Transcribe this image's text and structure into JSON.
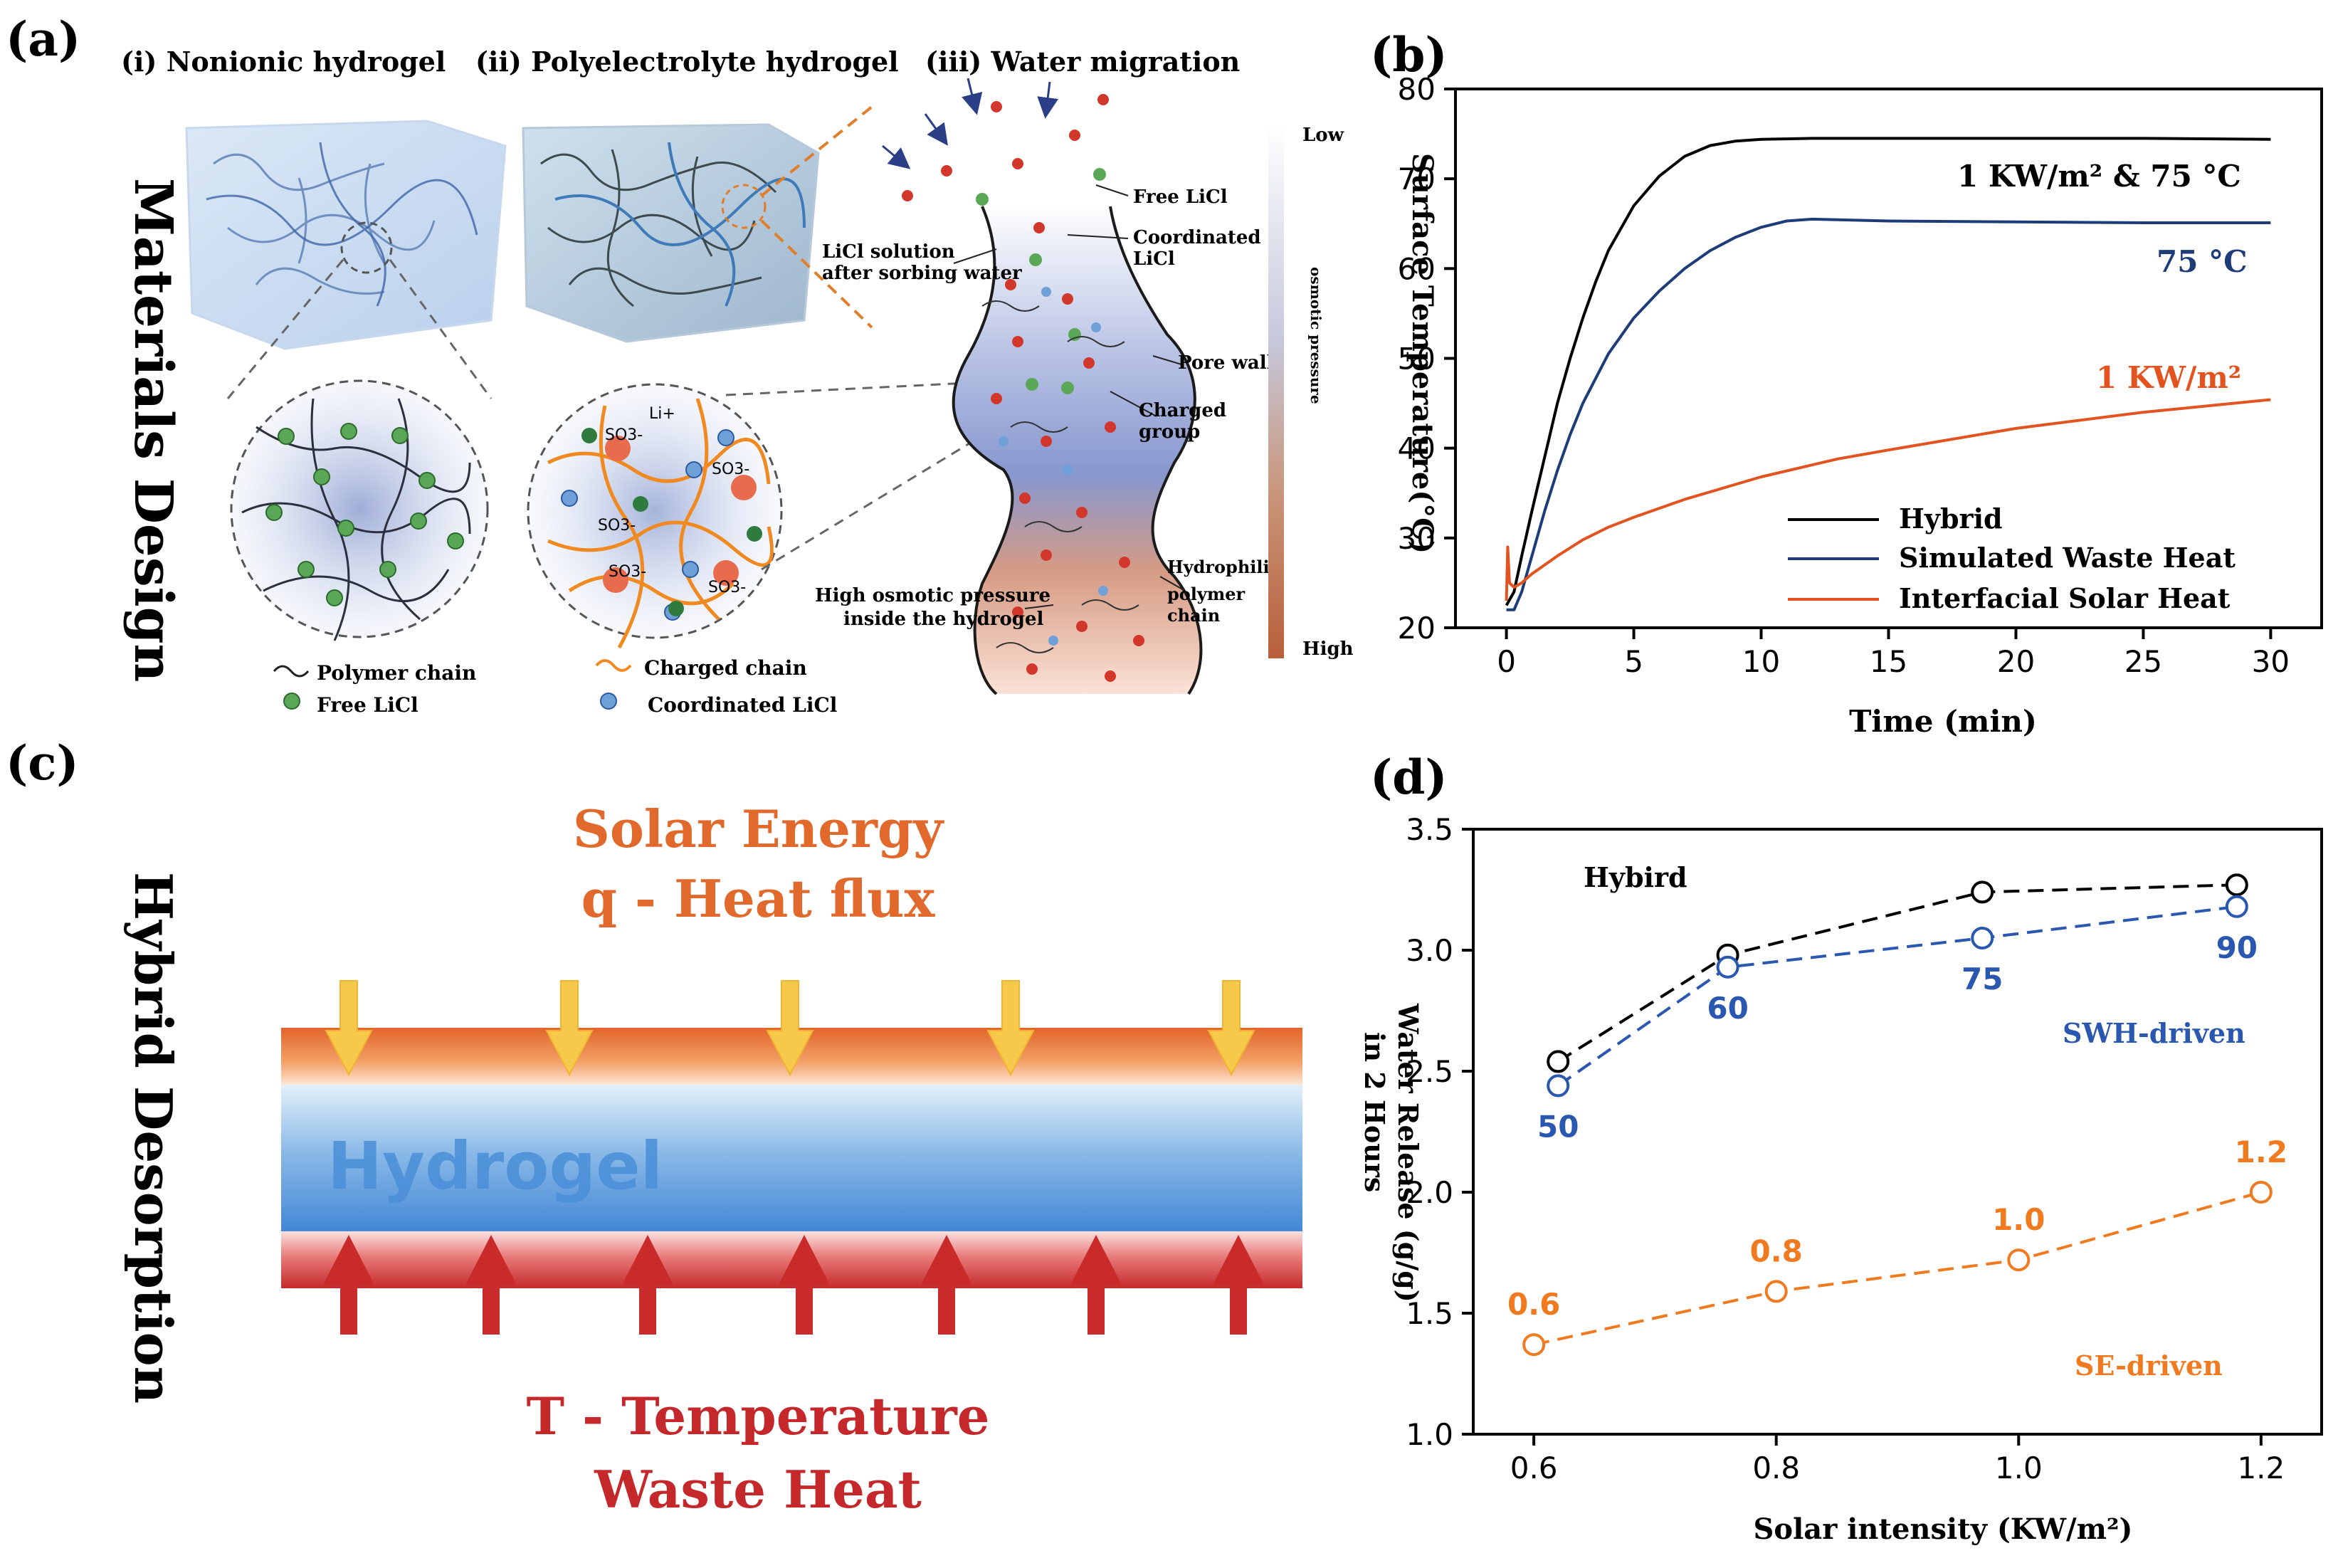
{
  "panel_a": {
    "label": "(a)",
    "side_title": "Materials Design",
    "sub_i": "(i)  Nonionic hydrogel",
    "sub_ii": "(ii)  Polyelectrolyte hydrogel",
    "sub_iii": "(iii)  Water migration",
    "legend_polymer": "Polymer chain",
    "legend_free": "Free LiCl",
    "legend_charged": "Charged chain",
    "legend_coord": "Coordinated LiCl",
    "ion_li": "Li+",
    "ion_so3": "SO3-",
    "label_free_licl": "Free LiCl",
    "label_coord_l1": "Coordinated",
    "label_coord_l2": "LiCl",
    "label_solution_l1": "LiCl solution",
    "label_solution_l2": "after sorbing water",
    "label_pore": "Pore wall",
    "label_charged_l1": "Charged",
    "label_charged_l2": "group",
    "label_hp_l1": "Hydrophilic",
    "label_hp_l2": "polymer",
    "label_hp_l3": "chain",
    "label_osm_l1": "High osmotic pressure",
    "label_osm_l2": "inside the hydrogel",
    "scale_low": "Low",
    "scale_high": "High",
    "scale_title": "osmotic pressure",
    "colors": {
      "blue_gel": "#8e9fd0",
      "orange_gel": "#e29b72",
      "orange_chain": "#f0891f",
      "green_ion": "#5aa857"
    }
  },
  "panel_b": {
    "label": "(b)",
    "ylabel": "Surface Temperature(°C)",
    "xlabel": "Time (min)",
    "xticks": [
      "0",
      "5",
      "10",
      "15",
      "20",
      "25",
      "30"
    ],
    "yticks": [
      "20",
      "30",
      "40",
      "50",
      "60",
      "70",
      "80"
    ],
    "annotation_hybrid": "1 KW/m² & 75 °C",
    "annotation_waste": "75 °C",
    "annotation_solar": "1 KW/m²",
    "legend": [
      "Hybrid",
      "Simulated Waste Heat",
      "Interfacial Solar Heat"
    ]
  },
  "panel_c": {
    "label": "(c)",
    "side_title": "Hybrid Desorption",
    "top_line1": "Solar Energy",
    "top_line2": "q - Heat flux",
    "bottom_line1": "T - Temperature",
    "bottom_line2": "Waste Heat",
    "slab_label": "Hydrogel",
    "colors": {
      "solar": "#e0692b",
      "waste": "#c4282a",
      "arrow_yellow": "#f7c94a",
      "arrow_red": "#c92a2a",
      "slab_blue": "#4b8fd8"
    }
  },
  "panel_d": {
    "label": "(d)",
    "ylabel_line1": "Water Release (g/g)",
    "ylabel_line2": "in 2 Hours",
    "xlabel": "Solar intensity (KW/m²)",
    "xticks": [
      "0.6",
      "0.8",
      "1.0",
      "1.2"
    ],
    "yticks": [
      "1.0",
      "1.5",
      "2.0",
      "2.5",
      "3.0",
      "3.5"
    ],
    "series_label_hybrid": "Hybird",
    "series_label_swh": "SWH-driven",
    "series_label_se": "SE-driven",
    "swh_point_labels": [
      "50",
      "60",
      "75",
      "90"
    ],
    "se_point_labels": [
      "0.6",
      "0.8",
      "1.0",
      "1.2"
    ]
  },
  "chart_data": [
    {
      "type": "line",
      "title": "",
      "xlabel": "Time (min)",
      "ylabel": "Surface Temperature(°C)",
      "xlim": [
        -2,
        32
      ],
      "ylim": [
        20,
        80
      ],
      "series": [
        {
          "name": "Hybrid",
          "color": "#000000",
          "x": [
            0,
            0.3,
            0.6,
            1,
            1.5,
            2,
            2.5,
            3,
            3.5,
            4,
            5,
            6,
            7,
            8,
            9,
            10,
            12,
            15,
            20,
            25,
            30
          ],
          "y": [
            22.5,
            24,
            28,
            33,
            39,
            45,
            50,
            54.5,
            58.5,
            62,
            67,
            70.3,
            72.5,
            73.7,
            74.2,
            74.4,
            74.5,
            74.5,
            74.5,
            74.5,
            74.4
          ]
        },
        {
          "name": "Simulated Waste Heat",
          "color": "#1d3c78",
          "x": [
            0,
            0.3,
            0.6,
            1,
            1.5,
            2,
            2.5,
            3,
            4,
            5,
            6,
            7,
            8,
            9,
            10,
            11,
            12,
            15,
            20,
            25,
            30
          ],
          "y": [
            22,
            22,
            24,
            28,
            33,
            37.5,
            41.5,
            45,
            50.5,
            54.5,
            57.5,
            60,
            62,
            63.5,
            64.6,
            65.3,
            65.5,
            65.3,
            65.2,
            65.1,
            65.1
          ]
        },
        {
          "name": "Interfacial Solar Heat",
          "color": "#e2531f",
          "x": [
            0,
            0.05,
            0.12,
            0.3,
            0.6,
            1,
            2,
            3,
            4,
            5,
            7,
            10,
            13,
            15,
            20,
            25,
            30
          ],
          "y": [
            23,
            29,
            25,
            24.5,
            25,
            26,
            28,
            29.8,
            31.2,
            32.3,
            34.3,
            36.8,
            38.8,
            39.8,
            42.2,
            44,
            45.4
          ]
        }
      ],
      "annotations": [
        "1 KW/m² & 75 °C",
        "75 °C",
        "1 KW/m²"
      ]
    },
    {
      "type": "line",
      "title": "",
      "xlabel": "Solar intensity (KW/m²)",
      "ylabel": "Water Release (g/g) in 2 Hours",
      "xlim": [
        0.55,
        1.25
      ],
      "ylim": [
        1.0,
        3.5
      ],
      "series": [
        {
          "name": "Hybird",
          "color": "#000000",
          "style": "dashed",
          "marker": "open-circle",
          "x": [
            0.62,
            0.76,
            0.97,
            1.18
          ],
          "y": [
            2.54,
            2.98,
            3.24,
            3.27
          ]
        },
        {
          "name": "SWH-driven",
          "color": "#2a57b0",
          "style": "dashed",
          "marker": "open-circle",
          "x": [
            0.62,
            0.76,
            0.97,
            1.18
          ],
          "y": [
            2.44,
            2.93,
            3.05,
            3.18
          ],
          "point_labels": [
            "50",
            "60",
            "75",
            "90"
          ]
        },
        {
          "name": "SE-driven",
          "color": "#f07a1f",
          "style": "dashed",
          "marker": "open-circle",
          "x": [
            0.6,
            0.8,
            1.0,
            1.2
          ],
          "y": [
            1.37,
            1.59,
            1.72,
            2.0
          ],
          "point_labels": [
            "0.6",
            "0.8",
            "1.0",
            "1.2"
          ]
        }
      ]
    }
  ]
}
